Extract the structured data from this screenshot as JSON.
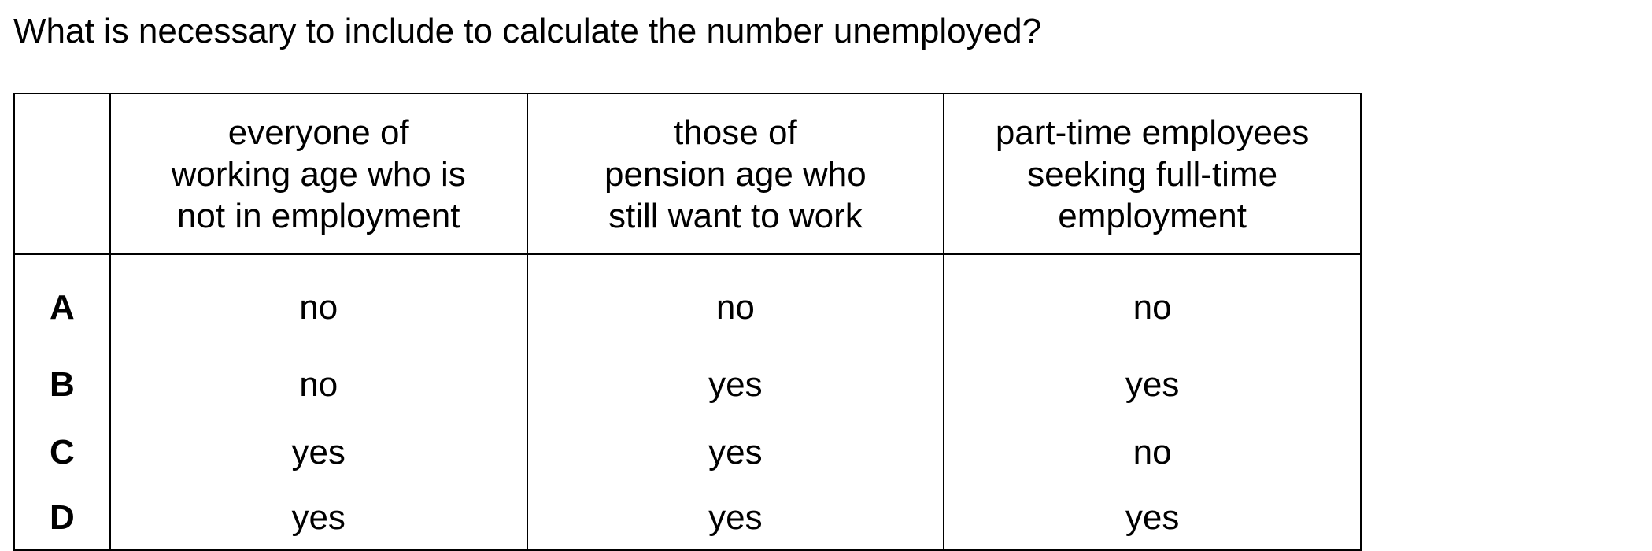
{
  "question": "What is necessary to include to calculate the number unemployed?",
  "table": {
    "headers": [
      "",
      [
        "everyone of",
        "working age who is",
        "not in employment"
      ],
      [
        "those of",
        "pension age who",
        "still want to work"
      ],
      [
        "part-time employees",
        "seeking full-time",
        "employment"
      ]
    ],
    "rows": [
      {
        "key": "A",
        "values": [
          "no",
          "no",
          "no"
        ]
      },
      {
        "key": "B",
        "values": [
          "no",
          "yes",
          "yes"
        ]
      },
      {
        "key": "C",
        "values": [
          "yes",
          "yes",
          "no"
        ]
      },
      {
        "key": "D",
        "values": [
          "yes",
          "yes",
          "yes"
        ]
      }
    ]
  }
}
